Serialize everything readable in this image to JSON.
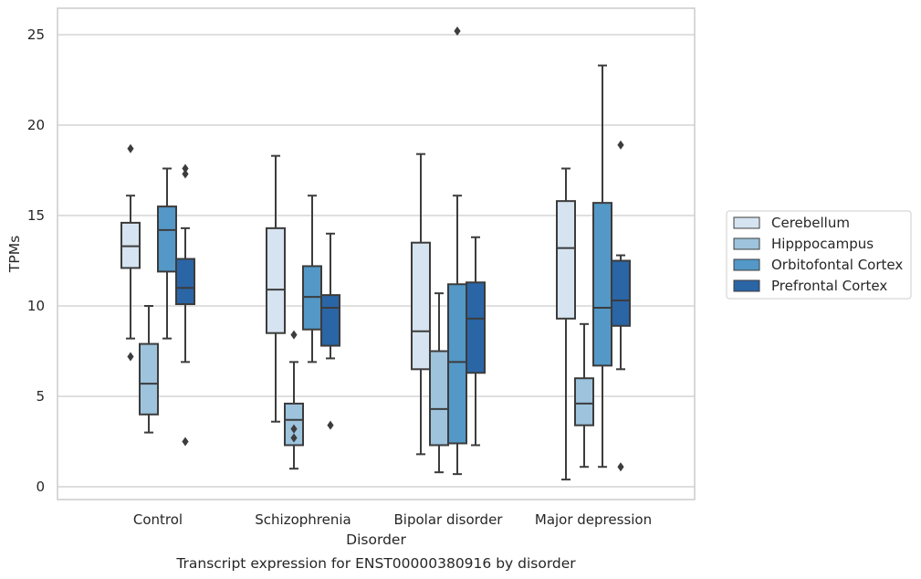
{
  "chart_data": {
    "type": "box",
    "title": "",
    "xlabel": "Disorder",
    "ylabel": "TPMs",
    "caption": "Transcript expression for ENST00000380916 by disorder",
    "ylim": [
      -0.7,
      26.3
    ],
    "yticks": [
      0,
      5,
      10,
      15,
      20,
      25
    ],
    "grid": "horizontal",
    "legend_position": "right",
    "categories": [
      "Control",
      "Schizophrenia",
      "Bipolar disorder",
      "Major depression"
    ],
    "series": [
      {
        "name": "Cerebellum",
        "color": "#d6e3f0",
        "boxes": [
          {
            "whislo": 8.2,
            "q1": 12.1,
            "med": 13.3,
            "q3": 14.6,
            "whishi": 16.1,
            "fliers": [
              18.7,
              7.2
            ]
          },
          {
            "whislo": 3.6,
            "q1": 8.5,
            "med": 10.9,
            "q3": 14.3,
            "whishi": 18.3,
            "fliers": []
          },
          {
            "whislo": 1.8,
            "q1": 6.5,
            "med": 8.6,
            "q3": 13.5,
            "whishi": 18.4,
            "fliers": []
          },
          {
            "whislo": 0.4,
            "q1": 9.3,
            "med": 13.2,
            "q3": 15.8,
            "whishi": 17.6,
            "fliers": []
          }
        ]
      },
      {
        "name": "Hipppocampus",
        "color": "#9dc3dd",
        "boxes": [
          {
            "whislo": 3.0,
            "q1": 4.0,
            "med": 5.7,
            "q3": 7.9,
            "whishi": 10.0,
            "fliers": []
          },
          {
            "whislo": 1.0,
            "q1": 2.3,
            "med": 3.7,
            "q3": 4.6,
            "whishi": 6.9,
            "fliers": [
              8.4,
              3.2,
              2.7
            ]
          },
          {
            "whislo": 0.8,
            "q1": 2.3,
            "med": 4.3,
            "q3": 7.5,
            "whishi": 10.7,
            "fliers": []
          },
          {
            "whislo": 1.1,
            "q1": 3.4,
            "med": 4.6,
            "q3": 6.0,
            "whishi": 9.0,
            "fliers": []
          }
        ]
      },
      {
        "name": "Orbitofontal Cortex",
        "color": "#5398c7",
        "boxes": [
          {
            "whislo": 8.2,
            "q1": 11.9,
            "med": 14.2,
            "q3": 15.5,
            "whishi": 17.6,
            "fliers": []
          },
          {
            "whislo": 6.9,
            "q1": 8.7,
            "med": 10.5,
            "q3": 12.2,
            "whishi": 16.1,
            "fliers": []
          },
          {
            "whislo": 0.7,
            "q1": 2.4,
            "med": 6.9,
            "q3": 11.2,
            "whishi": 16.1,
            "fliers": [
              25.2
            ]
          },
          {
            "whislo": 1.1,
            "q1": 6.7,
            "med": 9.9,
            "q3": 15.7,
            "whishi": 23.3,
            "fliers": []
          }
        ]
      },
      {
        "name": "Prefrontal Cortex",
        "color": "#2a65a6",
        "boxes": [
          {
            "whislo": 6.9,
            "q1": 10.1,
            "med": 11.0,
            "q3": 12.6,
            "whishi": 14.3,
            "fliers": [
              17.6,
              17.3,
              2.5
            ]
          },
          {
            "whislo": 7.1,
            "q1": 7.8,
            "med": 9.9,
            "q3": 10.6,
            "whishi": 14.0,
            "fliers": [
              3.4
            ]
          },
          {
            "whislo": 2.3,
            "q1": 6.3,
            "med": 9.3,
            "q3": 11.3,
            "whishi": 13.8,
            "fliers": []
          },
          {
            "whislo": 6.5,
            "q1": 8.9,
            "med": 10.3,
            "q3": 12.5,
            "whishi": 12.8,
            "fliers": [
              18.9,
              1.1
            ]
          }
        ]
      }
    ]
  }
}
